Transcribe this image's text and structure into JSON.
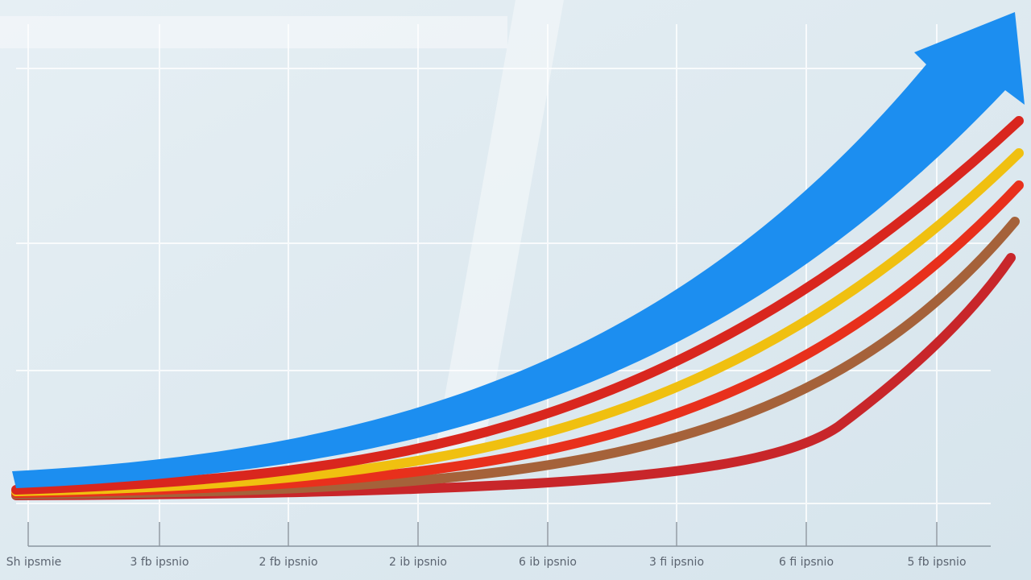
{
  "x_axis_labels": [
    "Sh ipsmie",
    "3 fb ipsnio",
    "2 fb ipsnio",
    "2 ib ipsnio",
    "6 ib ipsnio",
    "3 fi ipsnio",
    "6 fi ipsnio",
    "5 fb ipsnio"
  ]
}
